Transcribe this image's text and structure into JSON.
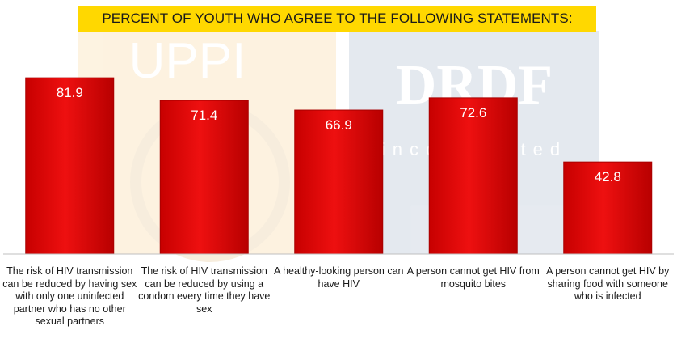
{
  "chart_data": {
    "type": "bar",
    "title": "PERCENT OF YOUTH WHO AGREE TO THE FOLLOWING STATEMENTS:",
    "categories": [
      "The risk of HIV transmission can be reduced by having sex with only one uninfected partner who has no other sexual partners",
      "The risk of HIV transmission can be reduced by using a condom every time they have sex",
      "A healthy-looking person can have HIV",
      "A person cannot get HIV from mosquito bites",
      "A person cannot get HIV by sharing food with someone who is infected"
    ],
    "values": [
      81.9,
      71.4,
      66.9,
      72.6,
      42.8
    ],
    "value_labels": [
      "81.9",
      "71.4",
      "66.9",
      "72.6",
      "42.8"
    ],
    "ylim": [
      0,
      100
    ],
    "bar_color": "#e00000",
    "bar_edge_color": "#a80000",
    "grid": false,
    "legend": "none"
  },
  "watermark": {
    "left_logo_text": "UPPI",
    "left_logo_color": "#f3a21b",
    "right_logo_text": "DRDF",
    "right_logo_subtext": "incorporated",
    "right_logo_color": "#3a5f8c"
  }
}
